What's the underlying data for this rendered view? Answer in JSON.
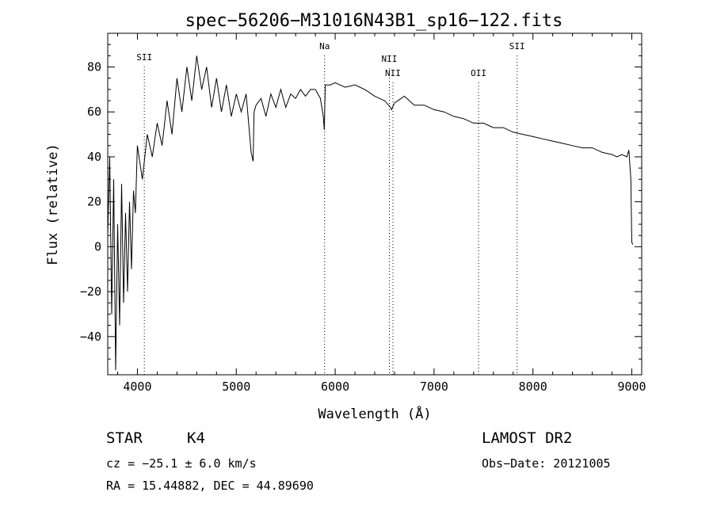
{
  "chart_data": {
    "type": "line",
    "title": "spec−56206−M31016N43B1_sp16−122.fits",
    "xlabel": "Wavelength (Å)",
    "ylabel": "Flux (relative)",
    "xlim": [
      3700,
      9100
    ],
    "ylim": [
      -57,
      95
    ],
    "xticks": [
      4000,
      5000,
      6000,
      7000,
      8000,
      9000
    ],
    "xtick_labels": [
      "4000",
      "5000",
      "6000",
      "7000",
      "8000",
      "9000"
    ],
    "yticks": [
      -40,
      -20,
      0,
      20,
      40,
      60,
      80
    ],
    "ytick_labels": [
      "−40",
      "−20",
      "0",
      "20",
      "40",
      "60",
      "80"
    ],
    "grid": false,
    "series": [
      {
        "x": [
          3700,
          3720,
          3740,
          3760,
          3780,
          3800,
          3820,
          3840,
          3860,
          3880,
          3900,
          3920,
          3940,
          3960,
          3980,
          4000,
          4050,
          4100,
          4150,
          4200,
          4250,
          4300,
          4350,
          4400,
          4450,
          4500,
          4550,
          4600,
          4650,
          4700,
          4750,
          4800,
          4850,
          4900,
          4950,
          5000,
          5050,
          5100,
          5150,
          5170,
          5180,
          5200,
          5250,
          5300,
          5350,
          5400,
          5450,
          5500,
          5550,
          5600,
          5650,
          5700,
          5750,
          5800,
          5850,
          5880,
          5890,
          5900,
          5950,
          6000,
          6100,
          6200,
          6300,
          6400,
          6500,
          6560,
          6570,
          6600,
          6700,
          6800,
          6900,
          7000,
          7100,
          7200,
          7300,
          7400,
          7500,
          7600,
          7700,
          7800,
          7900,
          8000,
          8100,
          8200,
          8300,
          8400,
          8500,
          8600,
          8700,
          8800,
          8850,
          8900,
          8950,
          8970,
          8990,
          9000,
          9010
        ],
        "y": [
          5,
          40,
          -30,
          30,
          -55,
          10,
          -35,
          28,
          -25,
          15,
          -20,
          20,
          -10,
          25,
          15,
          45,
          30,
          50,
          40,
          55,
          45,
          65,
          50,
          75,
          60,
          80,
          65,
          85,
          70,
          80,
          62,
          75,
          60,
          72,
          58,
          68,
          60,
          68,
          42,
          38,
          60,
          63,
          66,
          58,
          68,
          62,
          70,
          62,
          68,
          66,
          70,
          67,
          70,
          70,
          66,
          58,
          52,
          72,
          72,
          73,
          71,
          72,
          70,
          67,
          65,
          62,
          61,
          64,
          67,
          63,
          63,
          61,
          60,
          58,
          57,
          55,
          55,
          53,
          53,
          51,
          50,
          49,
          48,
          47,
          46,
          45,
          44,
          44,
          42,
          41,
          40,
          41,
          40,
          43,
          30,
          2,
          1
        ]
      }
    ],
    "annotations": [
      {
        "label": "SII",
        "x": 4070
      },
      {
        "label": "Na",
        "x": 5893
      },
      {
        "label": "NII",
        "x": 6548
      },
      {
        "label": "NII",
        "x": 6584
      },
      {
        "label": "OII",
        "x": 7450
      },
      {
        "label": "SII",
        "x": 7840
      }
    ]
  },
  "info": {
    "object_class": "STAR",
    "subclass": "K4",
    "survey": "LAMOST DR2",
    "redshift": "cz = −25.1 ± 6.0 km/s",
    "obs_date": "Obs−Date: 20121005",
    "coords": "RA =  15.44882, DEC =  44.89690"
  }
}
